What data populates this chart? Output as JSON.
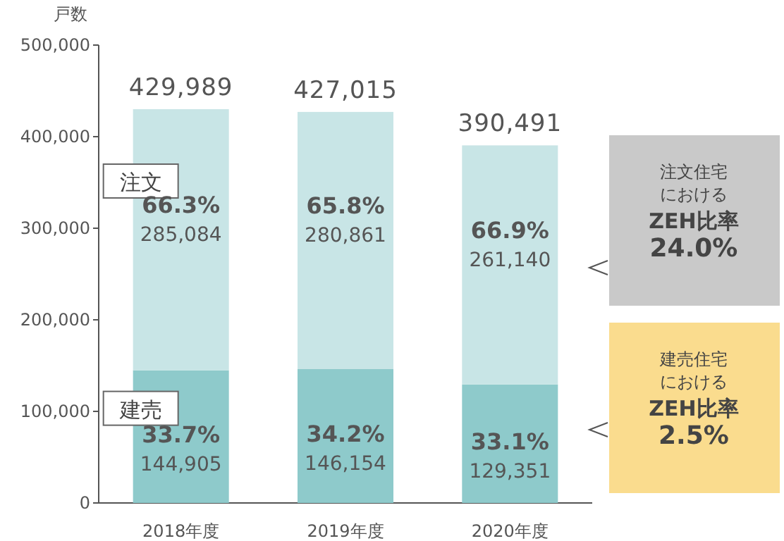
{
  "chart_data": {
    "type": "bar",
    "stacked": true,
    "ylabel": "戸数",
    "categories": [
      "2018年度",
      "2019年度",
      "2020年度"
    ],
    "series": [
      {
        "name": "建売",
        "color": "#8ecacb",
        "values": [
          144905,
          146154,
          129351
        ],
        "value_labels": [
          "144,905",
          "146,154",
          "129,351"
        ]
      },
      {
        "name": "注文",
        "color": "#c8e5e6",
        "values": [
          285084,
          280861,
          261140
        ],
        "value_labels": [
          "285,084",
          "280,861",
          "261,140"
        ]
      }
    ],
    "totals": [
      "429,989",
      "427,015",
      "390,491"
    ],
    "ylim": [
      0,
      500000
    ],
    "yticks": [
      {
        "value": 0,
        "label": "0"
      },
      {
        "value": 100000,
        "label": "100,000"
      },
      {
        "value": 200000,
        "label": "200,000"
      },
      {
        "value": 300000,
        "label": "300,000"
      },
      {
        "value": 400000,
        "label": "400,000"
      },
      {
        "value": 500000,
        "label": "500,000"
      }
    ],
    "grid": false,
    "legend": false,
    "annotations": [
      "66.3%",
      "65.8%",
      "66.9%",
      "33.7%",
      "34.2%",
      "33.1%",
      "注文住宅における**ZEH比率 24.0%**",
      "建売住宅における**ZEH比率 2.5%**"
    ]
  }
}
